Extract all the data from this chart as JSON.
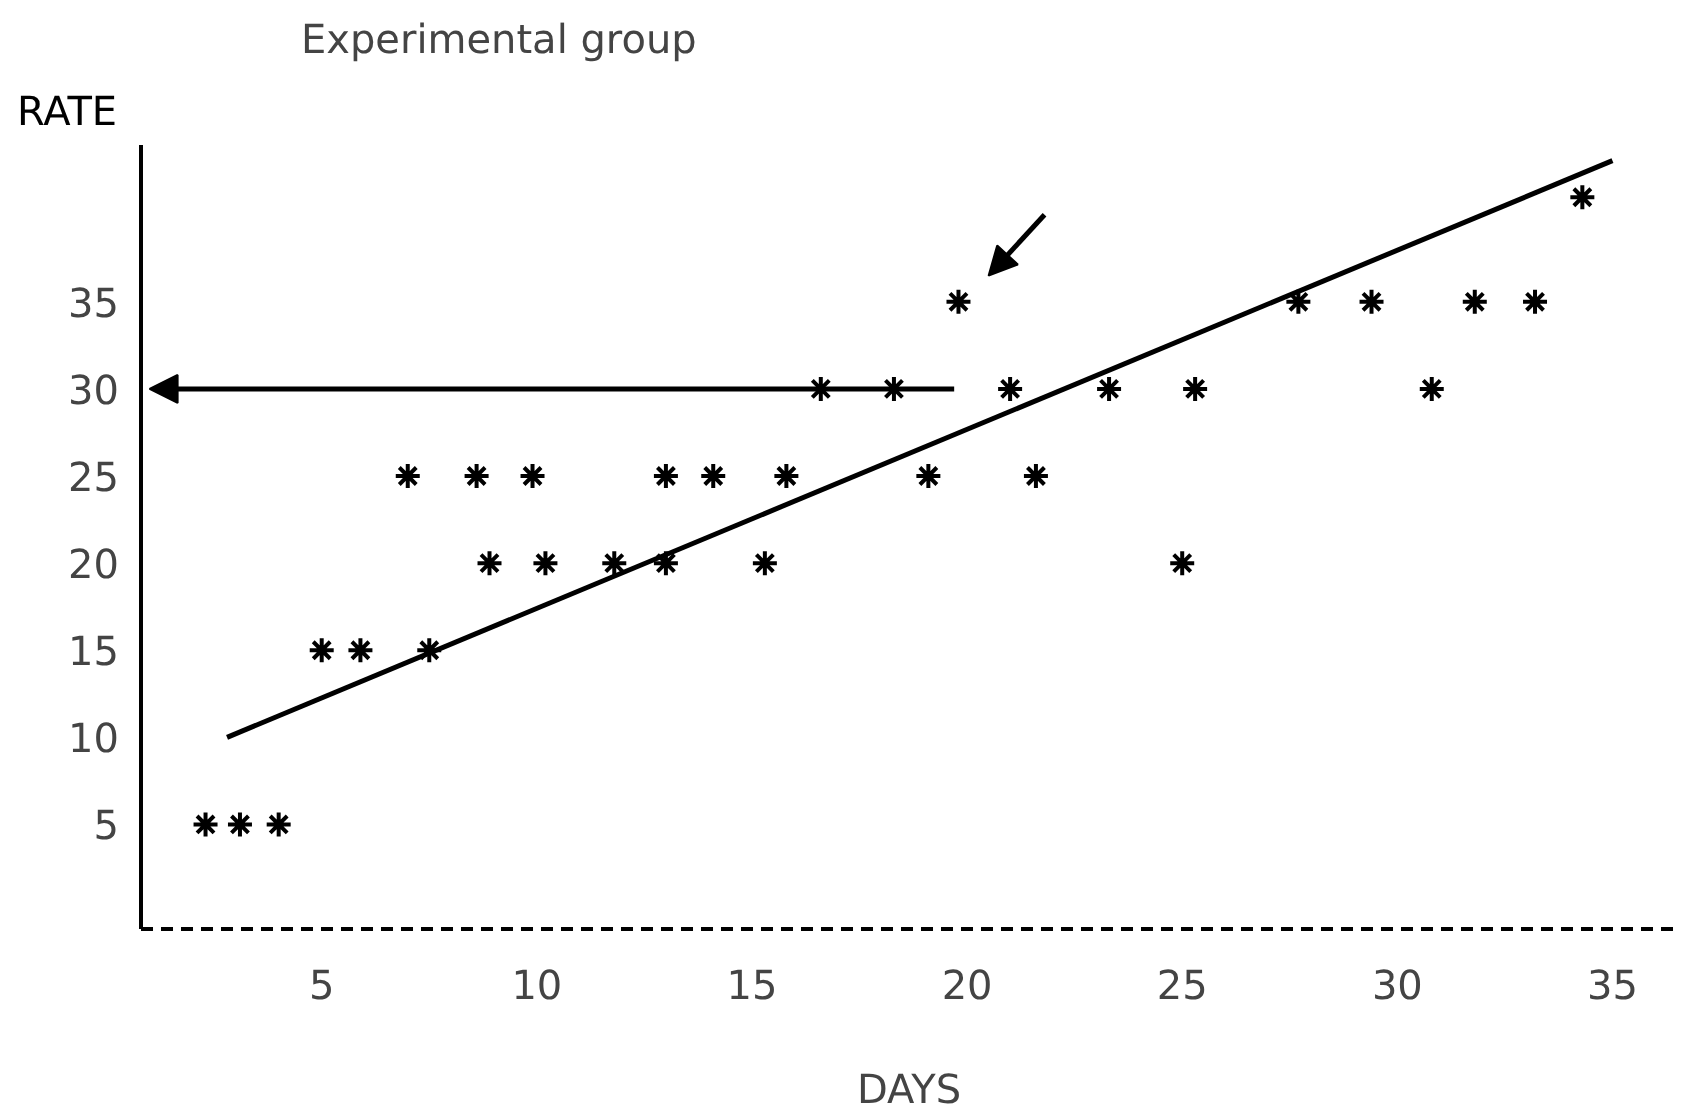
{
  "chart_data": {
    "type": "scatter",
    "title": "Experimental group",
    "xlabel": "DAYS",
    "ylabel": "RATE",
    "xlim": [
      0.8,
      36.5
    ],
    "ylim": [
      -1,
      44
    ],
    "xticks": [
      5,
      10,
      15,
      20,
      25,
      30,
      35
    ],
    "yticks": [
      5,
      10,
      15,
      20,
      25,
      30,
      35
    ],
    "grid": false,
    "series": [
      {
        "color": "#000000",
        "marker": "cross",
        "x": [
          2.3,
          3.1,
          4.0,
          5.0,
          5.9,
          7.5,
          7.0,
          8.6,
          9.9,
          13.0,
          14.1,
          15.8,
          19.1,
          21.6,
          8.9,
          10.2,
          11.8,
          13.0,
          15.3,
          25.0,
          16.6,
          18.3,
          21.0,
          23.3,
          25.3,
          30.8,
          19.8,
          27.7,
          29.4,
          31.8,
          33.2,
          34.3
        ],
        "values": [
          5,
          5,
          5,
          15,
          15,
          15,
          25,
          25,
          25,
          25,
          25,
          25,
          25,
          25,
          20,
          20,
          20,
          20,
          20,
          20,
          30,
          30,
          30,
          30,
          30,
          30,
          35,
          35,
          35,
          35,
          35,
          41
        ]
      },
      {
        "type": "line",
        "color": "#000000",
        "x": [
          2.8,
          35.0
        ],
        "values": [
          10,
          43.1
        ]
      }
    ]
  }
}
